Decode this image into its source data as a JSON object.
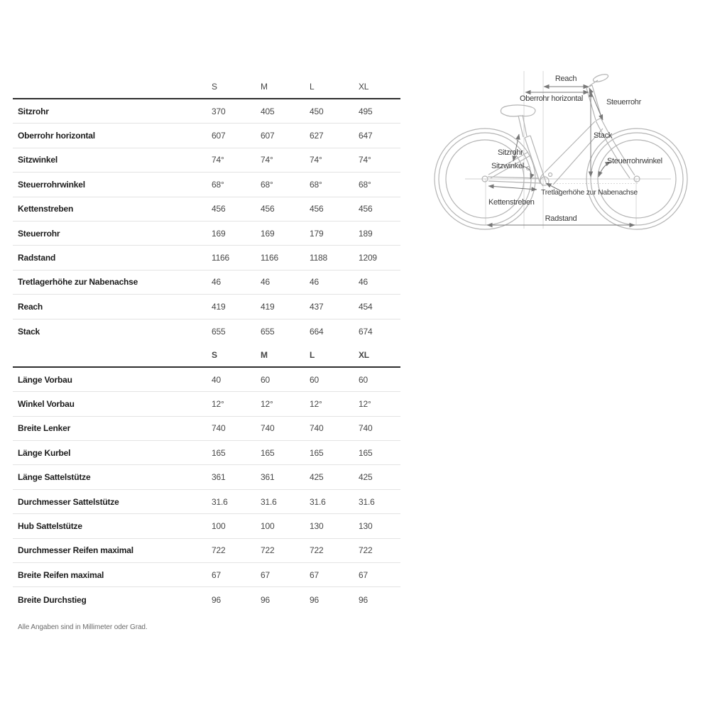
{
  "table": {
    "sections": [
      {
        "columns": [
          "S",
          "M",
          "L",
          "XL"
        ],
        "header_bold": false,
        "rows": [
          {
            "label": "Sitzrohr",
            "values": [
              "370",
              "405",
              "450",
              "495"
            ]
          },
          {
            "label": "Oberrohr horizontal",
            "values": [
              "607",
              "607",
              "627",
              "647"
            ]
          },
          {
            "label": "Sitzwinkel",
            "values": [
              "74°",
              "74°",
              "74°",
              "74°"
            ]
          },
          {
            "label": "Steuerrohrwinkel",
            "values": [
              "68°",
              "68°",
              "68°",
              "68°"
            ]
          },
          {
            "label": "Kettenstreben",
            "values": [
              "456",
              "456",
              "456",
              "456"
            ]
          },
          {
            "label": "Steuerrohr",
            "values": [
              "169",
              "169",
              "179",
              "189"
            ]
          },
          {
            "label": "Radstand",
            "values": [
              "1166",
              "1166",
              "1188",
              "1209"
            ]
          },
          {
            "label": "Tretlagerhöhe zur Nabenachse",
            "values": [
              "46",
              "46",
              "46",
              "46"
            ]
          },
          {
            "label": "Reach",
            "values": [
              "419",
              "419",
              "437",
              "454"
            ]
          },
          {
            "label": "Stack",
            "values": [
              "655",
              "655",
              "664",
              "674"
            ]
          }
        ]
      },
      {
        "columns": [
          "S",
          "M",
          "L",
          "XL"
        ],
        "header_bold": true,
        "rows": [
          {
            "label": "Länge Vorbau",
            "values": [
              "40",
              "60",
              "60",
              "60"
            ]
          },
          {
            "label": "Winkel Vorbau",
            "values": [
              "12°",
              "12°",
              "12°",
              "12°"
            ]
          },
          {
            "label": "Breite Lenker",
            "values": [
              "740",
              "740",
              "740",
              "740"
            ]
          },
          {
            "label": "Länge Kurbel",
            "values": [
              "165",
              "165",
              "165",
              "165"
            ]
          },
          {
            "label": "Länge Sattelstütze",
            "values": [
              "361",
              "361",
              "425",
              "425"
            ]
          },
          {
            "label": "Durchmesser Sattelstütze",
            "values": [
              "31.6",
              "31.6",
              "31.6",
              "31.6"
            ]
          },
          {
            "label": "Hub Sattelstütze",
            "values": [
              "100",
              "100",
              "130",
              "130"
            ]
          },
          {
            "label": "Durchmesser Reifen maximal",
            "values": [
              "722",
              "722",
              "722",
              "722"
            ]
          },
          {
            "label": "Breite Reifen maximal",
            "values": [
              "67",
              "67",
              "67",
              "67"
            ]
          },
          {
            "label": "Breite Durchstieg",
            "values": [
              "96",
              "96",
              "96",
              "96"
            ]
          }
        ]
      }
    ],
    "footnote": "Alle Angaben sind in Millimeter oder Grad."
  },
  "diagram": {
    "labels": {
      "reach": "Reach",
      "oberrohr": "Oberrohr horizontal",
      "steuerrohr": "Steuerrohr",
      "stack": "Stack",
      "sitzrohr": "Sitzrohr",
      "sitzwinkel": "Sitzwinkel",
      "steuerrohrwinkel": "Steuerrohrwinkel",
      "tretlager": "Tretlagerhöhe zur Nabenachse",
      "kettenstreben": "Kettenstreben",
      "radstand": "Radstand"
    },
    "colors": {
      "bike_outline": "#b4b4b4",
      "dimension_lines": "#787878",
      "reference_lines": "#d9d9d9",
      "label_text": "#3a3a3a"
    }
  }
}
